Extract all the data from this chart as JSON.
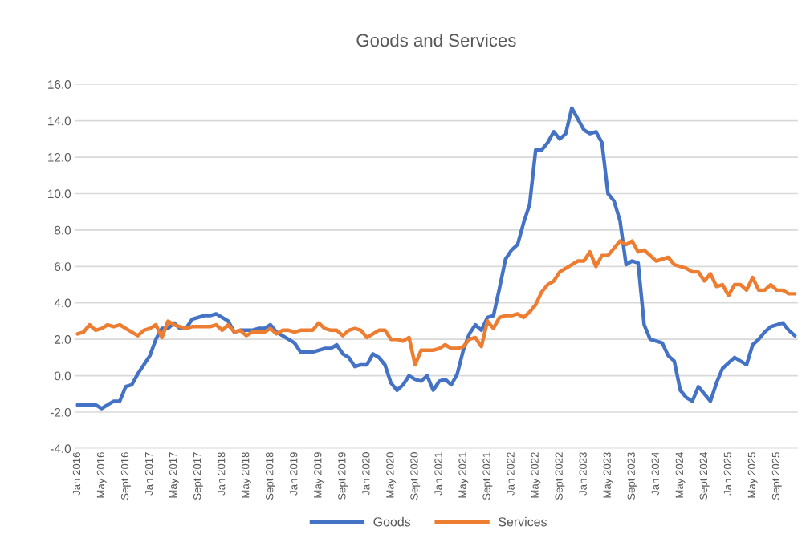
{
  "chart_data": {
    "type": "line",
    "title": "Goods and Services",
    "categories": [
      "Jan 2016",
      null,
      null,
      null,
      "May 2016",
      null,
      null,
      null,
      "Sept 2016",
      null,
      null,
      null,
      "Jan 2017",
      null,
      null,
      null,
      "May 2017",
      null,
      null,
      null,
      "Sept 2017",
      null,
      null,
      null,
      "Jan 2018",
      null,
      null,
      null,
      "May 2018",
      null,
      null,
      null,
      "Sept 2018",
      null,
      null,
      null,
      "Jan 2019",
      null,
      null,
      null,
      "May 2019",
      null,
      null,
      null,
      "Sept 2019",
      null,
      null,
      null,
      "Jan 2020",
      null,
      null,
      null,
      "May 2020",
      null,
      null,
      null,
      "Sept 2020",
      null,
      null,
      null,
      "Jan 2021",
      null,
      null,
      null,
      "May 2021",
      null,
      null,
      null,
      "Sept 2021",
      null,
      null,
      null,
      "Jan 2022",
      null,
      null,
      null,
      "May 2022",
      null,
      null,
      null,
      "Sept 2022",
      null,
      null,
      null,
      "Jan 2023",
      null,
      null,
      null,
      "May 2023",
      null,
      null,
      null,
      "Sept 2023",
      null,
      null,
      null,
      "Jan 2024",
      null,
      null,
      null,
      "May 2024",
      null,
      null,
      null,
      "Sept 2024",
      null,
      null,
      null,
      "Jan 2025",
      null,
      null,
      null,
      "May 2025",
      null,
      null,
      null,
      "Sept 2025",
      null,
      null,
      null
    ],
    "series": [
      {
        "name": "Goods",
        "color": "#4472c4",
        "values": [
          -1.6,
          -1.6,
          -1.6,
          -1.6,
          -1.8,
          -1.6,
          -1.4,
          -1.4,
          -0.6,
          -0.5,
          0.1,
          0.6,
          1.1,
          2.0,
          2.6,
          2.6,
          2.9,
          2.6,
          2.6,
          3.1,
          3.2,
          3.3,
          3.3,
          3.4,
          3.2,
          3.0,
          2.4,
          2.5,
          2.5,
          2.5,
          2.6,
          2.6,
          2.8,
          2.4,
          2.2,
          2.0,
          1.8,
          1.3,
          1.3,
          1.3,
          1.4,
          1.5,
          1.5,
          1.7,
          1.2,
          1.0,
          0.5,
          0.6,
          0.6,
          1.2,
          1.0,
          0.6,
          -0.4,
          -0.8,
          -0.5,
          0.0,
          -0.2,
          -0.3,
          0.0,
          -0.8,
          -0.3,
          -0.2,
          -0.5,
          0.1,
          1.4,
          2.3,
          2.8,
          2.5,
          3.2,
          3.3,
          4.8,
          6.4,
          6.9,
          7.2,
          8.4,
          9.4,
          12.4,
          12.4,
          12.8,
          13.4,
          13.0,
          13.3,
          14.7,
          14.1,
          13.5,
          13.3,
          13.4,
          12.8,
          10.0,
          9.6,
          8.5,
          6.1,
          6.3,
          6.2,
          2.8,
          2.0,
          1.9,
          1.8,
          1.1,
          0.8,
          -0.8,
          -1.2,
          -1.4,
          -0.6,
          -1.0,
          -1.4,
          -0.4,
          0.4,
          0.7,
          1.0,
          0.8,
          0.6,
          1.7,
          2.0,
          2.4,
          2.7,
          2.8,
          2.9,
          2.5,
          2.2
        ]
      },
      {
        "name": "Services",
        "color": "#ed7d31",
        "values": [
          2.3,
          2.4,
          2.8,
          2.5,
          2.6,
          2.8,
          2.7,
          2.8,
          2.6,
          2.4,
          2.2,
          2.5,
          2.6,
          2.8,
          2.1,
          3.0,
          2.8,
          2.7,
          2.6,
          2.7,
          2.7,
          2.7,
          2.7,
          2.8,
          2.5,
          2.8,
          2.4,
          2.5,
          2.2,
          2.4,
          2.4,
          2.4,
          2.6,
          2.3,
          2.5,
          2.5,
          2.4,
          2.5,
          2.5,
          2.5,
          2.9,
          2.6,
          2.5,
          2.5,
          2.2,
          2.5,
          2.6,
          2.5,
          2.1,
          2.3,
          2.5,
          2.5,
          2.0,
          2.0,
          1.9,
          2.1,
          0.6,
          1.4,
          1.4,
          1.4,
          1.5,
          1.7,
          1.5,
          1.5,
          1.6,
          2.0,
          2.1,
          1.6,
          3.0,
          2.6,
          3.2,
          3.3,
          3.3,
          3.4,
          3.2,
          3.5,
          3.9,
          4.6,
          5.0,
          5.2,
          5.7,
          5.9,
          6.1,
          6.3,
          6.3,
          6.8,
          6.0,
          6.6,
          6.6,
          7.0,
          7.4,
          7.2,
          7.4,
          6.8,
          6.9,
          6.6,
          6.3,
          6.4,
          6.5,
          6.1,
          6.0,
          5.9,
          5.7,
          5.7,
          5.2,
          5.6,
          4.9,
          5.0,
          4.4,
          5.0,
          5.0,
          4.7,
          5.4,
          4.7,
          4.7,
          5.0,
          4.7,
          4.7,
          4.5,
          4.5
        ]
      }
    ],
    "ylim": [
      -4,
      16
    ],
    "yticks": [
      {
        "value": -4,
        "label": "-4.0"
      },
      {
        "value": -2,
        "label": "-2.0"
      },
      {
        "value": 0,
        "label": "0.0"
      },
      {
        "value": 2,
        "label": "2.0"
      },
      {
        "value": 4,
        "label": "4.0"
      },
      {
        "value": 6,
        "label": "6.0"
      },
      {
        "value": 8,
        "label": "8.0"
      },
      {
        "value": 10,
        "label": "10.0"
      },
      {
        "value": 12,
        "label": "12.0"
      },
      {
        "value": 14,
        "label": "14.0"
      },
      {
        "value": 16,
        "label": "16.0"
      }
    ],
    "grid": "y",
    "legend": "bottom",
    "marker": "none",
    "line_style": "solid"
  }
}
